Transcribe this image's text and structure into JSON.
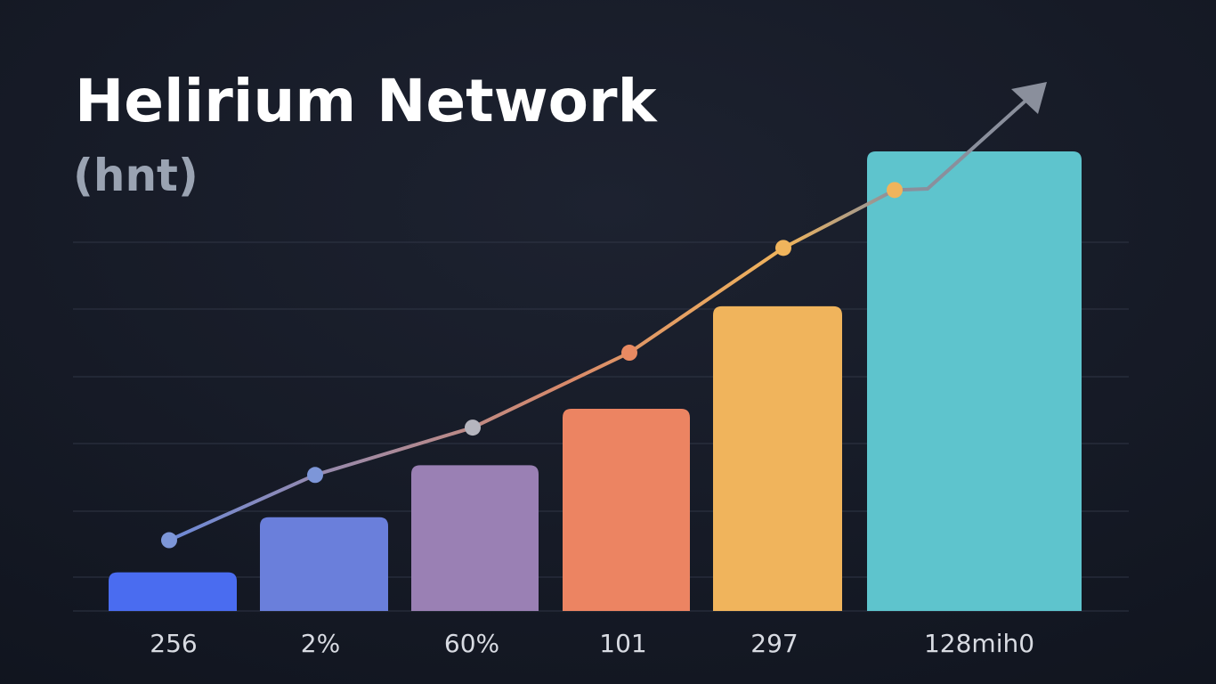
{
  "chart_data": {
    "type": "bar",
    "title": "Helirium Network",
    "subtitle": "(hnt)",
    "categories": [
      "256",
      "2%",
      "60%",
      "101",
      "297",
      "128mih0"
    ],
    "series": [
      {
        "type": "bar",
        "colors": [
          "#4a6cf0",
          "#6a7fdb",
          "#9a80b4",
          "#ec8462",
          "#f0b45c",
          "#5ec4cd"
        ],
        "values": [
          8.4,
          20.4,
          31.7,
          44,
          66.3,
          100
        ]
      },
      {
        "type": "line",
        "color": "#c9a48a",
        "values": [
          15.4,
          29.6,
          39.9,
          56.2,
          79,
          91.6
        ]
      }
    ],
    "ylim": [
      0,
      100
    ]
  }
}
